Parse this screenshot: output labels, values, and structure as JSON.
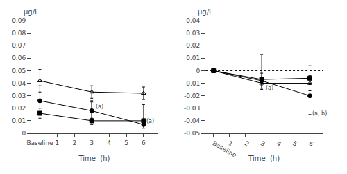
{
  "chart_data": [
    {
      "type": "line",
      "xlabel": "Time  (h)",
      "ylabel": "µg/L",
      "xlim": [
        -0.5,
        6.8
      ],
      "xticks": [
        {
          "value": 0,
          "label": "Baseline"
        },
        1,
        2,
        3,
        4,
        5,
        6
      ],
      "ylim": [
        0,
        0.09
      ],
      "yticks": [
        0,
        0.01,
        0.02,
        0.03,
        0.04,
        0.05,
        0.06,
        0.07,
        0.08,
        0.09
      ],
      "grid": false,
      "series": [
        {
          "color": "black",
          "marker": "triangle-up-open",
          "line_style": "solid",
          "x": [
            0,
            3,
            6
          ],
          "values": [
            0.042,
            0.033,
            0.032
          ],
          "yerr_lo": [
            0.009,
            0.005,
            0.005
          ],
          "yerr_hi": [
            0.009,
            0.005,
            0.005
          ]
        },
        {
          "color": "black",
          "marker": "square",
          "line_style": "solid",
          "x": [
            0,
            3,
            6
          ],
          "values": [
            0.016,
            0.01,
            0.01
          ],
          "yerr_lo": [
            0.004,
            0.003,
            0.003
          ],
          "yerr_hi": [
            0.004,
            0.015,
            0.013
          ]
        },
        {
          "color": "black",
          "marker": "circle",
          "line_style": "solid",
          "x": [
            0,
            3,
            6
          ],
          "values": [
            0.026,
            0.018,
            0.007
          ],
          "yerr_lo": [
            0.01,
            0.006,
            0.003
          ],
          "yerr_hi": [
            0.012,
            0.008,
            0.003
          ]
        }
      ],
      "annotations": [
        {
          "text": "(a)",
          "x": 3.15,
          "y": 0.021
        },
        {
          "text": "(a)",
          "x": 6.1,
          "y": 0.0095
        }
      ]
    },
    {
      "type": "line",
      "xlabel": "Time  (h)",
      "ylabel": "µg/L",
      "xlim": [
        -0.5,
        6.8
      ],
      "xticks": [
        {
          "value": 0,
          "label": "Baseline"
        },
        1,
        2,
        3,
        4,
        5,
        6
      ],
      "ylim": [
        -0.05,
        0.04
      ],
      "yticks": [
        -0.05,
        -0.04,
        -0.03,
        -0.02,
        -0.01,
        0,
        0.01,
        0.02,
        0.03,
        0.04
      ],
      "grid": false,
      "hline": 0.0,
      "series": [
        {
          "color": "black",
          "marker": "triangle-up-open",
          "line_style": "solid",
          "x": [
            0,
            3,
            6
          ],
          "values": [
            0.0,
            -0.01,
            -0.01
          ],
          "yerr_lo": [
            0.001,
            0.005,
            0.006
          ],
          "yerr_hi": [
            0.001,
            0.005,
            0.006
          ]
        },
        {
          "color": "black",
          "marker": "square",
          "line_style": "solid",
          "x": [
            0,
            3,
            6
          ],
          "values": [
            0.0,
            -0.007,
            -0.006
          ],
          "yerr_lo": [
            0.001,
            0.005,
            0.005
          ],
          "yerr_hi": [
            0.001,
            0.02,
            0.01
          ]
        },
        {
          "color": "black",
          "marker": "circle",
          "line_style": "solid",
          "x": [
            0,
            3,
            6
          ],
          "values": [
            0.0,
            -0.008,
            -0.02
          ],
          "yerr_lo": [
            0.001,
            0.006,
            0.015
          ],
          "yerr_hi": [
            0.001,
            0.006,
            0.01
          ]
        }
      ],
      "annotations": [
        {
          "text": "(a)",
          "x": 3.15,
          "y": -0.014
        },
        {
          "text": "(a, b)",
          "x": 6.05,
          "y": -0.034
        }
      ]
    }
  ]
}
